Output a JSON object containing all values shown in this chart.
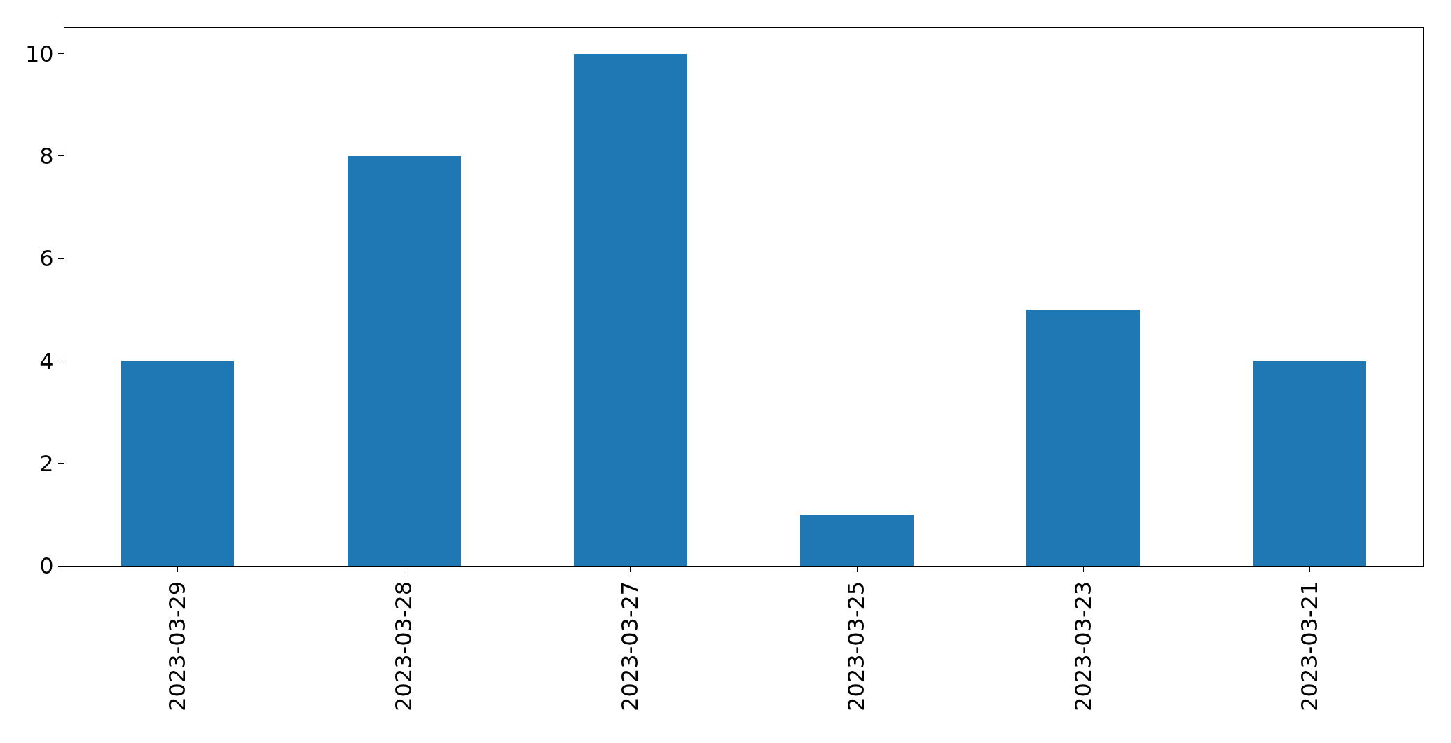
{
  "chart_data": {
    "type": "bar",
    "categories": [
      "2023-03-29",
      "2023-03-28",
      "2023-03-27",
      "2023-03-25",
      "2023-03-23",
      "2023-03-21"
    ],
    "values": [
      4,
      8,
      10,
      1,
      5,
      4
    ],
    "color": "#1f77b4",
    "ylim": [
      0,
      10.5
    ],
    "yticks": [
      0,
      2,
      4,
      6,
      8,
      10
    ],
    "grid": false
  }
}
